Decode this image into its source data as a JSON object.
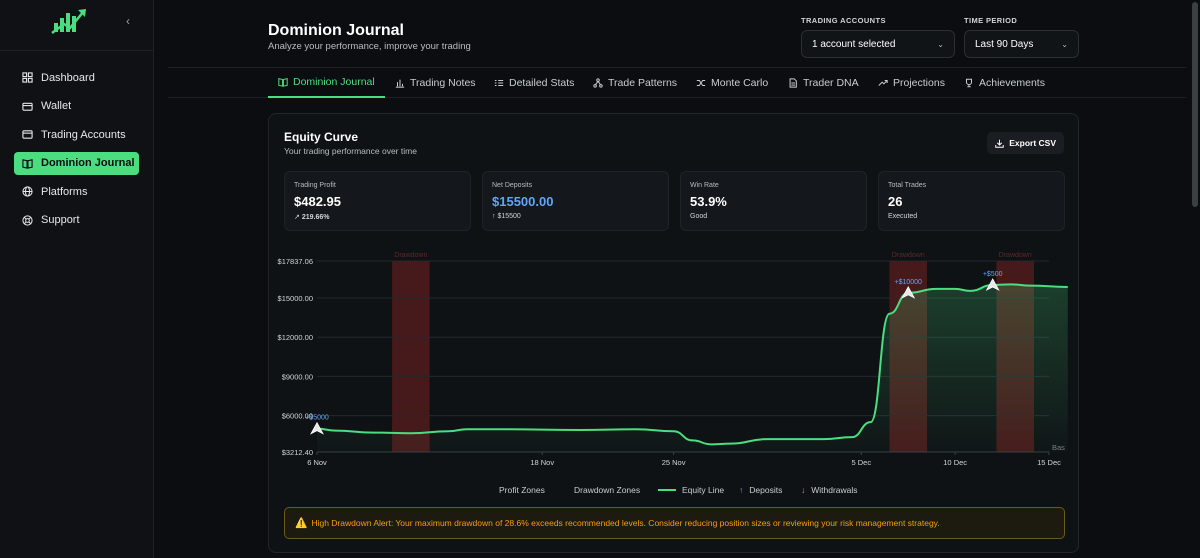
{
  "sidebar": {
    "collapse_glyph": "‹",
    "items": [
      {
        "label": "Dashboard",
        "icon": "grid-icon",
        "active": false
      },
      {
        "label": "Wallet",
        "icon": "wallet-icon",
        "active": false
      },
      {
        "label": "Trading Accounts",
        "icon": "card-icon",
        "active": false
      },
      {
        "label": "Dominion Journal",
        "icon": "book-icon",
        "active": true
      },
      {
        "label": "Platforms",
        "icon": "globe-icon",
        "active": false
      },
      {
        "label": "Support",
        "icon": "support-icon",
        "active": false
      }
    ]
  },
  "header": {
    "title": "Dominion Journal",
    "subtitle": "Analyze your performance, improve your trading",
    "accounts_label": "TRADING ACCOUNTS",
    "accounts_value": "1 account selected",
    "period_label": "TIME PERIOD",
    "period_value": "Last 90 Days"
  },
  "tabs": [
    {
      "label": "Dominion Journal",
      "icon": "book-icon",
      "active": true
    },
    {
      "label": "Trading Notes",
      "icon": "bar-chart-icon",
      "active": false
    },
    {
      "label": "Detailed Stats",
      "icon": "list-icon",
      "active": false
    },
    {
      "label": "Trade Patterns",
      "icon": "network-icon",
      "active": false
    },
    {
      "label": "Monte Carlo",
      "icon": "shuffle-icon",
      "active": false
    },
    {
      "label": "Trader DNA",
      "icon": "file-icon",
      "active": false
    },
    {
      "label": "Projections",
      "icon": "trend-up-icon",
      "active": false
    },
    {
      "label": "Achievements",
      "icon": "trophy-icon",
      "active": false
    }
  ],
  "card": {
    "title": "Equity Curve",
    "subtitle": "Your trading performance over time",
    "export_label": "Export CSV"
  },
  "stats": [
    {
      "label": "Trading Profit",
      "value": "$482.95",
      "sub": "219.66%",
      "sub_icon": "trend-up-icon"
    },
    {
      "label": "Net Deposits",
      "value": "$15500.00",
      "sub": "$15500",
      "sub_icon": "arrow-up-icon"
    },
    {
      "label": "Win Rate",
      "value": "53.9%",
      "sub": "Good",
      "sub_icon": ""
    },
    {
      "label": "Total Trades",
      "value": "26",
      "sub": "Executed",
      "sub_icon": ""
    }
  ],
  "chart_data": {
    "type": "line",
    "ylim": [
      3212.4,
      17837.06
    ],
    "y_ticks": [
      {
        "value": 17837.06,
        "label": "$17837.06"
      },
      {
        "value": 15000,
        "label": "$15000.00"
      },
      {
        "value": 12000,
        "label": "$12000.00"
      },
      {
        "value": 9000,
        "label": "$9000.00"
      },
      {
        "value": 6000,
        "label": "$6000.00"
      },
      {
        "value": 3212.4,
        "label": "$3212.40"
      }
    ],
    "x_ticks": [
      "6 Nov",
      "18 Nov",
      "25 Nov",
      "5 Dec",
      "10 Dec",
      "15 Dec"
    ],
    "x_tick_days": [
      0,
      12,
      19,
      29,
      34,
      39
    ],
    "series": [
      {
        "name": "Equity Line",
        "points": [
          [
            0,
            5000
          ],
          [
            1,
            4850
          ],
          [
            3,
            4700
          ],
          [
            5,
            4650
          ],
          [
            7,
            4800
          ],
          [
            8,
            4950
          ],
          [
            10,
            4950
          ],
          [
            14,
            4900
          ],
          [
            17,
            4950
          ],
          [
            19,
            4800
          ],
          [
            20,
            4100
          ],
          [
            21,
            3800
          ],
          [
            22,
            3850
          ],
          [
            24,
            4200
          ],
          [
            27,
            4200
          ],
          [
            28.5,
            4350
          ],
          [
            29.5,
            5500
          ],
          [
            30.5,
            13800
          ],
          [
            31.5,
            15400
          ],
          [
            33,
            15700
          ],
          [
            34,
            15700
          ],
          [
            34.8,
            15550
          ],
          [
            36,
            16000
          ],
          [
            37,
            16050
          ],
          [
            38,
            15950
          ],
          [
            40,
            15850
          ]
        ]
      }
    ],
    "drawdown_zones": [
      [
        4,
        6
      ],
      [
        30.5,
        32.5
      ],
      [
        36.2,
        38.2
      ]
    ],
    "zone_label": "Drawdown",
    "markers": [
      {
        "day": 0,
        "value": 5000,
        "label": "+$5000"
      },
      {
        "day": 31.5,
        "value": 15400,
        "label": "+$10000"
      },
      {
        "day": 36,
        "value": 16000,
        "label": "+$500"
      }
    ],
    "baseline_label": "Bas",
    "grid": true
  },
  "legend": [
    {
      "label": "Profit Zones",
      "kind": "text"
    },
    {
      "label": "Drawdown Zones",
      "kind": "text"
    },
    {
      "label": "Equity Line",
      "kind": "line"
    },
    {
      "label": "Deposits",
      "kind": "arrow-up",
      "glyph": "↑"
    },
    {
      "label": "Withdrawals",
      "kind": "arrow-down",
      "glyph": "↓"
    }
  ],
  "alert": {
    "glyph": "⚠️",
    "text": "High Drawdown Alert: Your maximum drawdown of 28.6% exceeds recommended levels. Consider reducing position sizes or reviewing your risk management strategy."
  },
  "colors": {
    "accent": "#4ade80",
    "blue": "#60a5fa",
    "warning": "#f59e0b",
    "drawdown": "#5a1e1e"
  }
}
